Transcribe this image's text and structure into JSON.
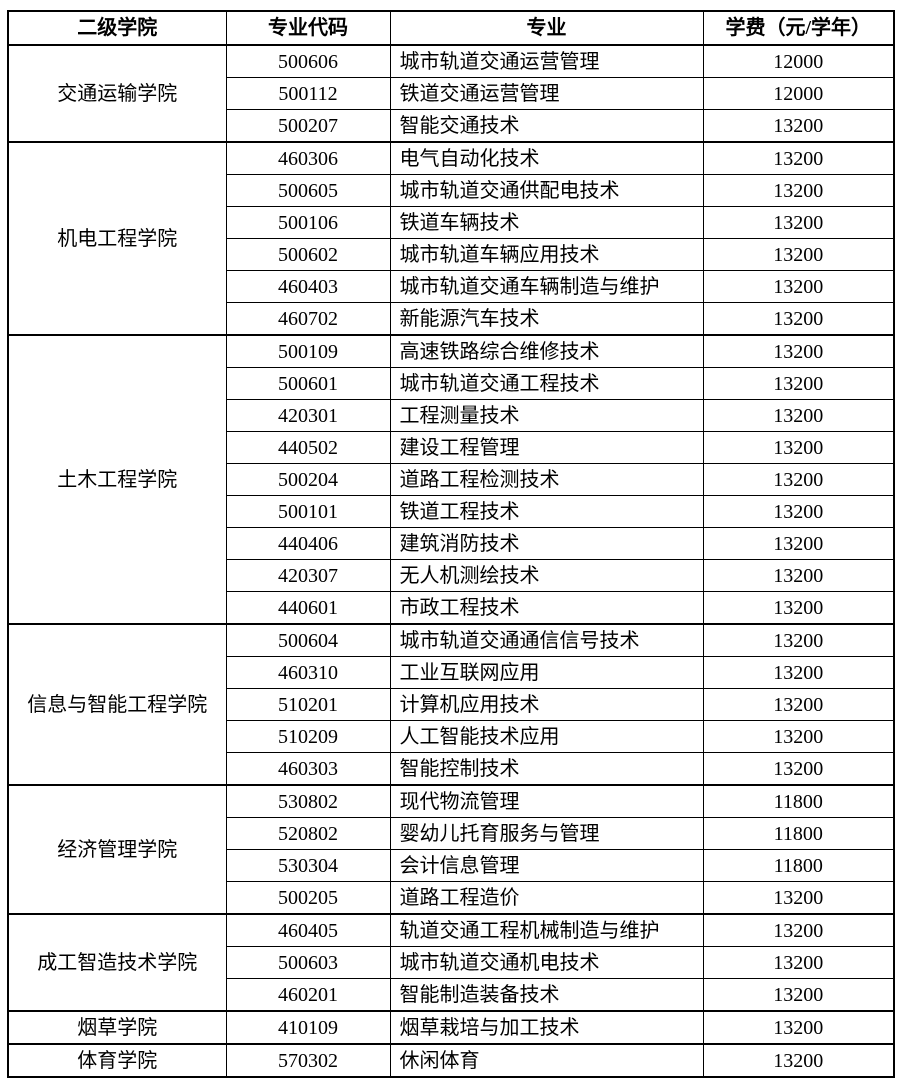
{
  "colors": {
    "text": "#000000",
    "border": "#000000",
    "background": "#ffffff"
  },
  "header": {
    "college": "二级学院",
    "code": "专业代码",
    "major": "专业",
    "fee": "学费（元/学年）"
  },
  "groups": [
    {
      "college": "交通运输学院",
      "rows": [
        {
          "code": "500606",
          "major": "城市轨道交通运营管理",
          "fee": "12000"
        },
        {
          "code": "500112",
          "major": "铁道交通运营管理",
          "fee": "12000"
        },
        {
          "code": "500207",
          "major": "智能交通技术",
          "fee": "13200"
        }
      ]
    },
    {
      "college": "机电工程学院",
      "rows": [
        {
          "code": "460306",
          "major": "电气自动化技术",
          "fee": "13200"
        },
        {
          "code": "500605",
          "major": "城市轨道交通供配电技术",
          "fee": "13200"
        },
        {
          "code": "500106",
          "major": "铁道车辆技术",
          "fee": "13200"
        },
        {
          "code": "500602",
          "major": "城市轨道车辆应用技术",
          "fee": "13200"
        },
        {
          "code": "460403",
          "major": "城市轨道交通车辆制造与维护",
          "fee": "13200"
        },
        {
          "code": "460702",
          "major": "新能源汽车技术",
          "fee": "13200"
        }
      ]
    },
    {
      "college": "土木工程学院",
      "rows": [
        {
          "code": "500109",
          "major": "高速铁路综合维修技术",
          "fee": "13200"
        },
        {
          "code": "500601",
          "major": "城市轨道交通工程技术",
          "fee": "13200"
        },
        {
          "code": "420301",
          "major": "工程测量技术",
          "fee": "13200"
        },
        {
          "code": "440502",
          "major": "建设工程管理",
          "fee": "13200"
        },
        {
          "code": "500204",
          "major": "道路工程检测技术",
          "fee": "13200"
        },
        {
          "code": "500101",
          "major": "铁道工程技术",
          "fee": "13200"
        },
        {
          "code": "440406",
          "major": "建筑消防技术",
          "fee": "13200"
        },
        {
          "code": "420307",
          "major": "无人机测绘技术",
          "fee": "13200"
        },
        {
          "code": "440601",
          "major": "市政工程技术",
          "fee": "13200"
        }
      ]
    },
    {
      "college": "信息与智能工程学院",
      "rows": [
        {
          "code": "500604",
          "major": "城市轨道交通通信信号技术",
          "fee": "13200"
        },
        {
          "code": "460310",
          "major": "工业互联网应用",
          "fee": "13200"
        },
        {
          "code": "510201",
          "major": "计算机应用技术",
          "fee": "13200"
        },
        {
          "code": "510209",
          "major": "人工智能技术应用",
          "fee": "13200"
        },
        {
          "code": "460303",
          "major": "智能控制技术",
          "fee": "13200"
        }
      ]
    },
    {
      "college": "经济管理学院",
      "rows": [
        {
          "code": "530802",
          "major": "现代物流管理",
          "fee": "11800"
        },
        {
          "code": "520802",
          "major": "婴幼儿托育服务与管理",
          "fee": "11800"
        },
        {
          "code": "530304",
          "major": "会计信息管理",
          "fee": "11800"
        },
        {
          "code": "500205",
          "major": "道路工程造价",
          "fee": "13200"
        }
      ]
    },
    {
      "college": "成工智造技术学院",
      "rows": [
        {
          "code": "460405",
          "major": "轨道交通工程机械制造与维护",
          "fee": "13200"
        },
        {
          "code": "500603",
          "major": "城市轨道交通机电技术",
          "fee": "13200"
        },
        {
          "code": "460201",
          "major": "智能制造装备技术",
          "fee": "13200"
        }
      ]
    },
    {
      "college": "烟草学院",
      "rows": [
        {
          "code": "410109",
          "major": "烟草栽培与加工技术",
          "fee": "13200"
        }
      ]
    },
    {
      "college": "体育学院",
      "rows": [
        {
          "code": "570302",
          "major": "休闲体育",
          "fee": "13200"
        }
      ]
    }
  ]
}
